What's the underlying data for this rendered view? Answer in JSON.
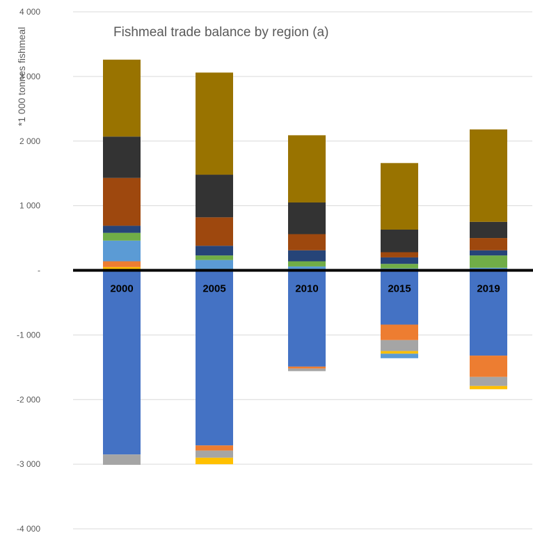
{
  "chart_data": {
    "type": "bar",
    "stacked": true,
    "title": "Fishmeal trade balance by region (a)",
    "ylabel": "*1 000 tonnes fishmeal",
    "xlabel": "",
    "ylim": [
      -4000,
      4000
    ],
    "yticks": [
      4000,
      3000,
      2000,
      1000,
      0,
      -1000,
      -2000,
      -3000,
      -4000
    ],
    "ytick_labels": [
      "4 000",
      "3 000",
      "2 000",
      "1 000",
      "-",
      "-1 000",
      "-2 000",
      "-3 000",
      "-4 000"
    ],
    "categories": [
      "2000",
      "2005",
      "2010",
      "2015",
      "2019"
    ],
    "grid": true,
    "legend": "none",
    "series": [
      {
        "color": "#ffc000",
        "values": [
          50,
          0,
          0,
          0,
          0
        ]
      },
      {
        "color": "#ed7d31",
        "values": [
          90,
          0,
          0,
          0,
          0
        ]
      },
      {
        "color": "#5b9bd5",
        "values": [
          320,
          160,
          60,
          30,
          40
        ]
      },
      {
        "color": "#70ad47",
        "values": [
          120,
          70,
          80,
          70,
          190
        ]
      },
      {
        "color": "#264478",
        "values": [
          110,
          150,
          170,
          100,
          80
        ]
      },
      {
        "color": "#9e480e",
        "values": [
          740,
          440,
          250,
          80,
          190
        ]
      },
      {
        "color": "#333333",
        "values": [
          640,
          660,
          490,
          350,
          250
        ]
      },
      {
        "color": "#997300",
        "values": [
          1190,
          1580,
          1040,
          1030,
          1430
        ]
      },
      {
        "color": "#4472c4",
        "values": [
          -2850,
          -2710,
          -1490,
          -840,
          -1320
        ]
      },
      {
        "color": "#ed7d31",
        "values": [
          0,
          -80,
          -30,
          -240,
          -330
        ]
      },
      {
        "color": "#a5a5a5",
        "values": [
          -160,
          -110,
          -40,
          -170,
          -140
        ]
      },
      {
        "color": "#ffc000",
        "values": [
          0,
          -100,
          0,
          -40,
          -50
        ]
      },
      {
        "color": "#5b9bd5",
        "values": [
          0,
          0,
          0,
          -70,
          0
        ]
      }
    ]
  }
}
